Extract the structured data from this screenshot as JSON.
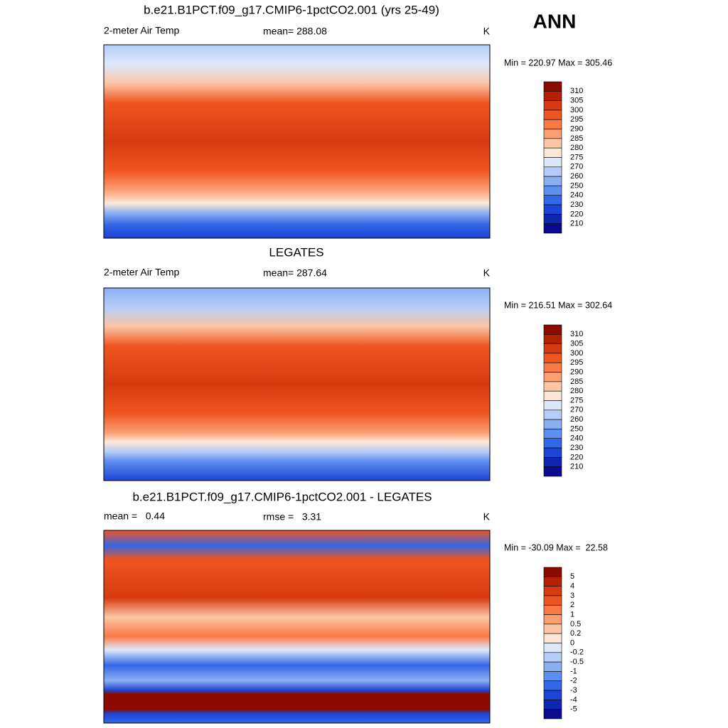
{
  "title": "ANN",
  "colorbar_colors": [
    "#8c0a00",
    "#b52000",
    "#d83a10",
    "#ef5520",
    "#fa7a45",
    "#fb9e72",
    "#fcc5a5",
    "#fde8d8",
    "#dde9fb",
    "#b5cdf8",
    "#8bb0f2",
    "#5e8ef0",
    "#3466e8",
    "#1c44d4",
    "#0f26b0",
    "#0a0a8e"
  ],
  "panels": [
    {
      "title": "b.e21.B1PCT.f09_g17.CMIP6-1pctCO2.001 (yrs 25-49)",
      "left_label": "2-meter Air Temp",
      "center_label": "mean= 288.08",
      "right_label": "K",
      "minmax": "Min = 220.97 Max = 305.46",
      "colorbar_labels": [
        310,
        305,
        300,
        295,
        290,
        285,
        280,
        275,
        270,
        260,
        250,
        240,
        230,
        220,
        210
      ]
    },
    {
      "title": "LEGATES",
      "left_label": "2-meter Air Temp",
      "center_label": "mean= 287.64",
      "right_label": "K",
      "minmax": "Min = 216.51 Max = 302.64",
      "colorbar_labels": [
        310,
        305,
        300,
        295,
        290,
        285,
        280,
        275,
        270,
        260,
        250,
        240,
        230,
        220,
        210
      ]
    },
    {
      "title": "b.e21.B1PCT.f09_g17.CMIP6-1pctCO2.001 - LEGATES",
      "left_label": "mean =   0.44",
      "center_label": "rmse =   3.31",
      "right_label": "K",
      "minmax": "Min = -30.09 Max =  22.58",
      "colorbar_labels": [
        5,
        4,
        3,
        2,
        1,
        0.5,
        0.2,
        0,
        -0.2,
        -0.5,
        -1,
        -2,
        -3,
        -4,
        -5
      ]
    }
  ]
}
